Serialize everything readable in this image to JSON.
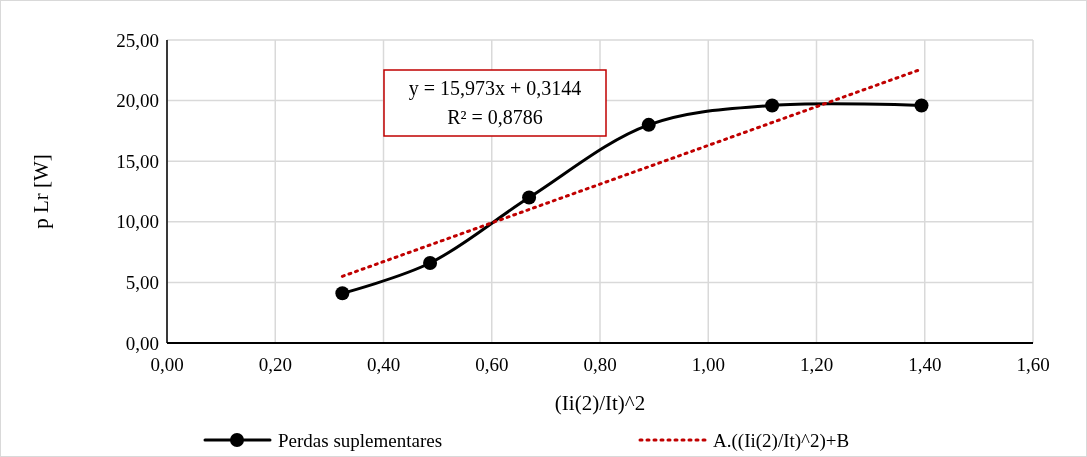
{
  "chart_data": {
    "type": "line",
    "xlabel": "(Ii(2)/It)^2",
    "ylabel": "p Lr [W]",
    "xlim": [
      0,
      1.6
    ],
    "ylim": [
      0,
      25
    ],
    "xticks": [
      {
        "value": 0,
        "label": "0,00"
      },
      {
        "value": 0.2,
        "label": "0,20"
      },
      {
        "value": 0.4,
        "label": "0,40"
      },
      {
        "value": 0.6,
        "label": "0,60"
      },
      {
        "value": 0.8,
        "label": "0,80"
      },
      {
        "value": 1,
        "label": "1,00"
      },
      {
        "value": 1.2,
        "label": "1,20"
      },
      {
        "value": 1.4,
        "label": "1,40"
      },
      {
        "value": 1.6,
        "label": "1,60"
      }
    ],
    "yticks": [
      {
        "value": 0,
        "label": "0,00"
      },
      {
        "value": 5,
        "label": "5,00"
      },
      {
        "value": 10,
        "label": "10,00"
      },
      {
        "value": 15,
        "label": "15,00"
      },
      {
        "value": 20,
        "label": "20,00"
      },
      {
        "value": 25,
        "label": "25,00"
      }
    ],
    "grid": true,
    "legend": "bottom",
    "annotations": [
      "y = 15,973x + 0,3144\nR² = 0,8786"
    ],
    "series": [
      {
        "name": "Perdas suplementares",
        "color": "#000000",
        "marker": "circle",
        "line_style": "solid",
        "x": [
          0.324,
          0.486,
          0.669,
          0.89,
          1.118,
          1.394
        ],
        "values": [
          4.1,
          6.6,
          12,
          18,
          19.6,
          19.6
        ]
      },
      {
        "name": "A.((Ii(2)/It)^2)+B",
        "color": "#c00000",
        "marker": "none",
        "line_style": "dotted",
        "x": [
          0.324,
          1.394
        ],
        "values": [
          5.5,
          22.6
        ]
      }
    ]
  }
}
